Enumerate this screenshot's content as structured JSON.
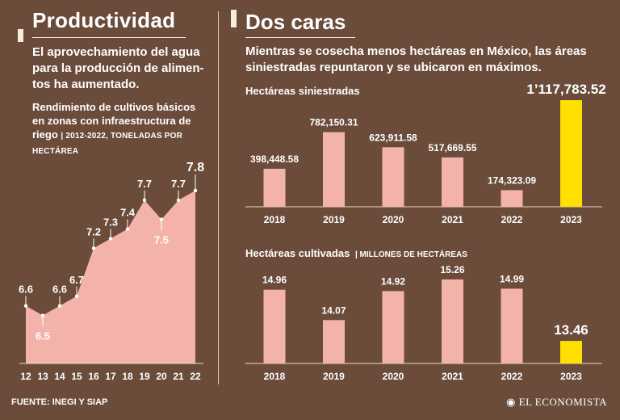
{
  "left": {
    "title": "Productividad",
    "description": [
      "El aprovechamiento del agua",
      "para la producción de alimen-",
      "tos ha aumentado."
    ],
    "subtitle_lines": [
      "Rendimiento de cultivos básicos",
      "en zonas con infraestructura de"
    ],
    "subtitle_last": "riego",
    "subtitle_small_1": "| 2012-2022, TONELADAS POR",
    "subtitle_small_2": "HECTÁREA"
  },
  "right": {
    "title": "Dos caras",
    "description": [
      "Mientras se cosecha menos hectáreas en México, las áreas",
      "siniestradas repuntaron y se ubicaron en máximos."
    ],
    "chart1_label": "Hectáreas siniestradas",
    "chart2_label": "Hectáreas cultivadas",
    "chart2_unit": "| MILLONES DE HECTÁREAS"
  },
  "footer": {
    "source": "FUENTE: INEGI Y SIAP",
    "brand": "EL ECONOMISTA"
  },
  "colors": {
    "background": "#6b4c3b",
    "bar": "#f4b3aa",
    "highlight": "#ffe000",
    "area": "#f4b3aa",
    "text": "#ffffff"
  },
  "chart_data": [
    {
      "type": "area",
      "title": "Rendimiento de cultivos básicos en zonas con infraestructura de riego",
      "categories": [
        "12",
        "13",
        "14",
        "15",
        "16",
        "17",
        "18",
        "19",
        "20",
        "21",
        "22"
      ],
      "values": [
        6.6,
        6.5,
        6.6,
        6.7,
        7.2,
        7.3,
        7.4,
        7.7,
        7.5,
        7.7,
        7.8
      ],
      "labels": [
        "6.6",
        "6.5",
        "6.6",
        "6.7",
        "7.2",
        "7.3",
        "7.4",
        "7.7",
        "7.5",
        "7.7",
        "7.8"
      ],
      "ylim": [
        6.0,
        7.85
      ]
    },
    {
      "type": "bar",
      "title": "Hectáreas siniestradas",
      "categories": [
        "2018",
        "2019",
        "2020",
        "2021",
        "2022",
        "2023"
      ],
      "values": [
        398448.58,
        782150.31,
        623911.58,
        517669.55,
        174323.09,
        1117783.52
      ],
      "labels": [
        "398,448.58",
        "782,150.31",
        "623,911.58",
        "517,669.55",
        "174,323.09",
        "1’117,783.52"
      ],
      "highlight_index": 5,
      "ylim": [
        0,
        1117783.52
      ]
    },
    {
      "type": "bar",
      "title": "Hectáreas cultivadas",
      "ylabel": "Millones de hectáreas",
      "categories": [
        "2018",
        "2019",
        "2020",
        "2021",
        "2022",
        "2023"
      ],
      "values": [
        14.96,
        14.07,
        14.92,
        15.26,
        14.99,
        13.46
      ],
      "labels": [
        "14.96",
        "14.07",
        "14.92",
        "15.26",
        "14.99",
        "13.46"
      ],
      "highlight_index": 5,
      "ylim": [
        12.8,
        15.26
      ]
    }
  ]
}
